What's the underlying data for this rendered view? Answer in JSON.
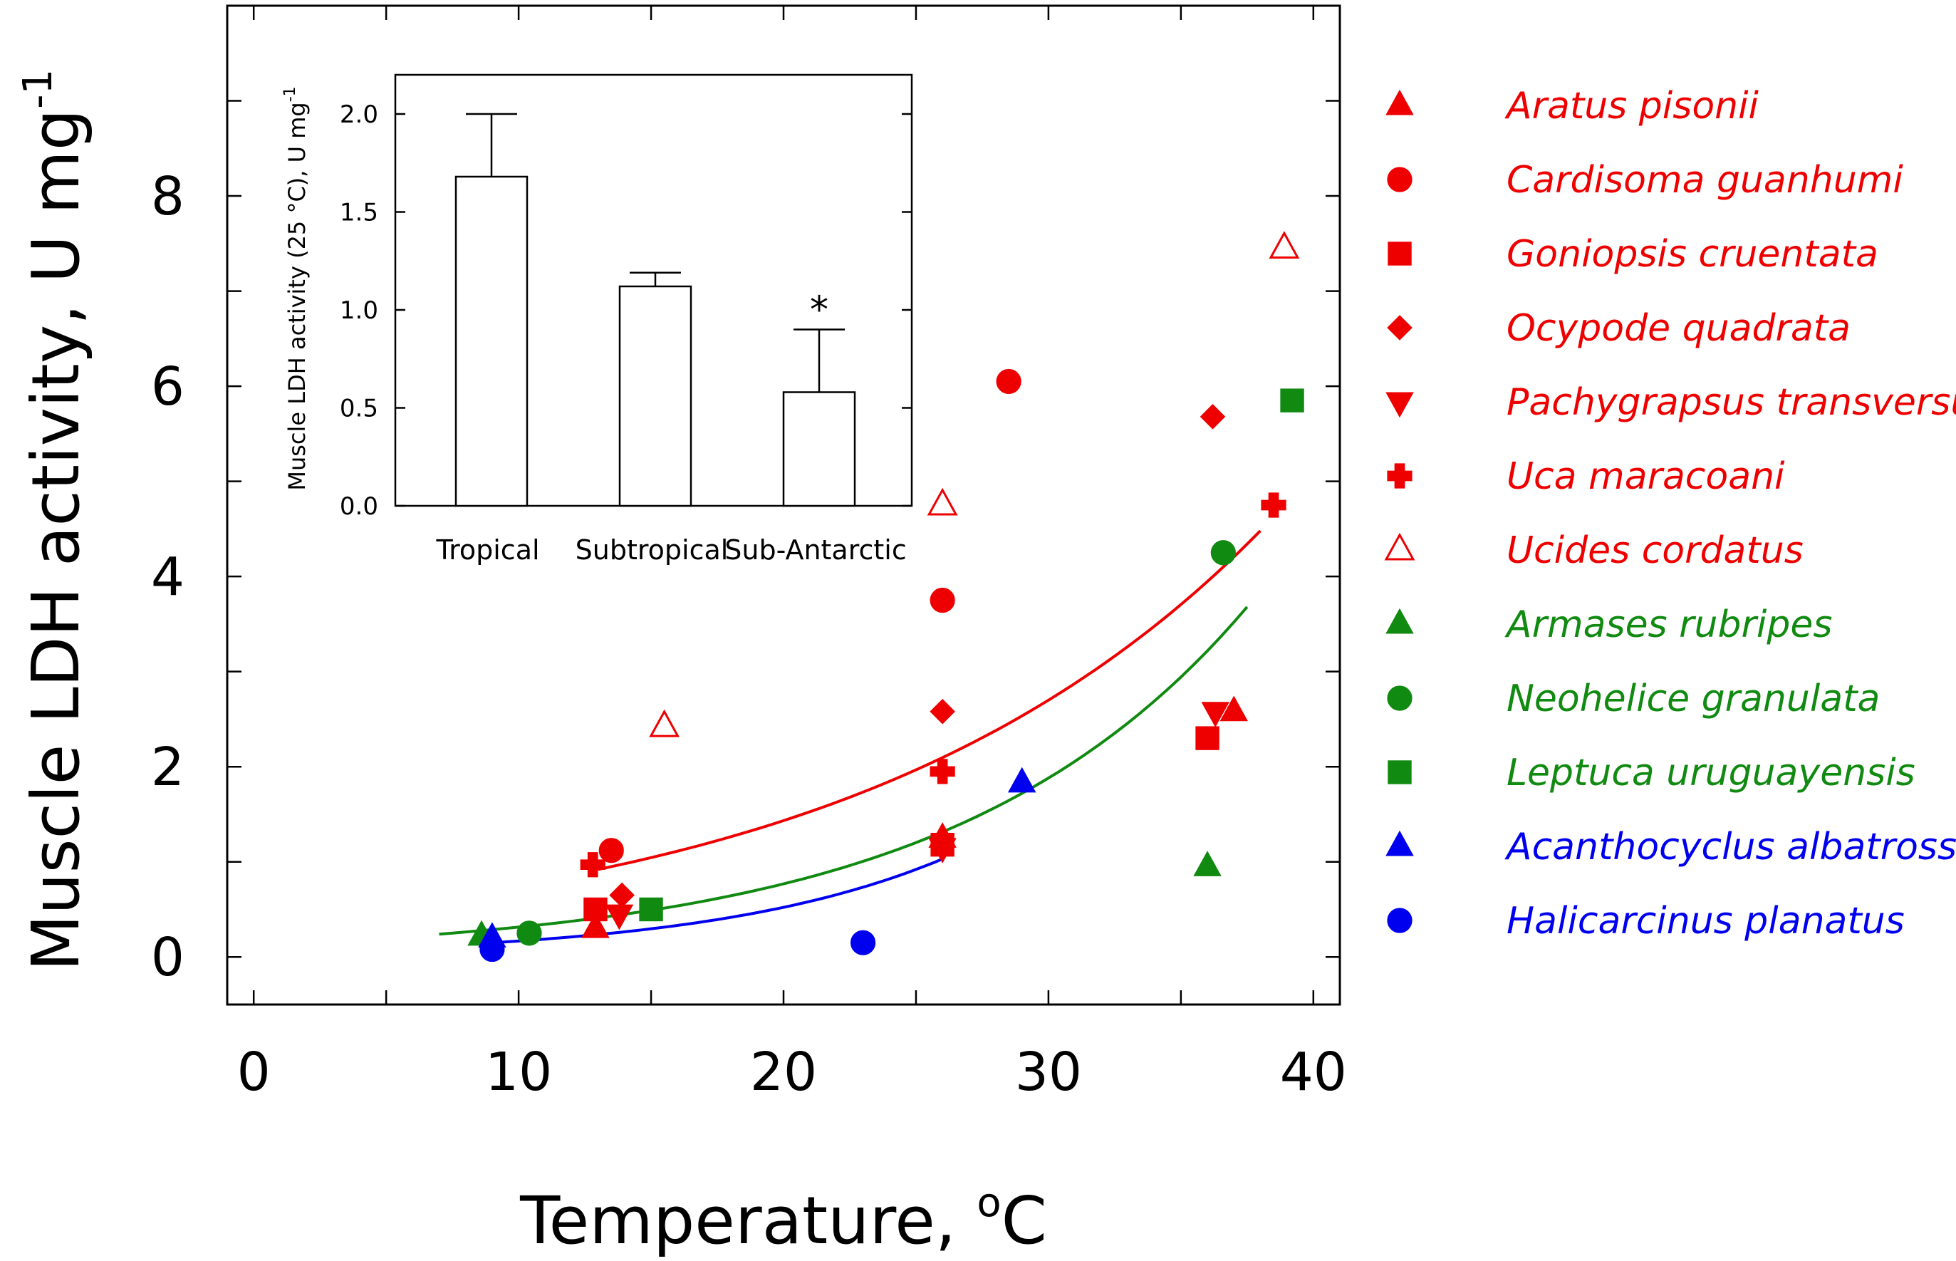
{
  "chart_data": [
    {
      "type": "scatter",
      "xlabel": "Temperature, °C",
      "xlabel_main": "Temperature, ",
      "xlabel_unit_sup": "o",
      "xlabel_unit": "C",
      "ylabel": "Muscle LDH activity, U mg-1",
      "ylabel_main": "Muscle LDH activity, U mg",
      "ylabel_sup": "-1",
      "xlim": [
        -1,
        41
      ],
      "ylim": [
        -0.5,
        10
      ],
      "xticks": [
        0,
        10,
        20,
        30,
        40
      ],
      "xtick_labels": [
        "0",
        "10",
        "20",
        "30",
        "40"
      ],
      "yticks": [
        0,
        2,
        4,
        6,
        8
      ],
      "ytick_labels": [
        "0",
        "2",
        "4",
        "6",
        "8"
      ],
      "minor_xticks": [
        5,
        15,
        25,
        35
      ],
      "minor_yticks": [
        1,
        3,
        5,
        7,
        9
      ],
      "colors": {
        "tropical": "#ee0000",
        "subtropical": "#108a10",
        "subantarctic": "#0000ee"
      },
      "series": [
        {
          "name": "Aratus pisonii",
          "marker": "triangle",
          "color": "#ee0000",
          "filled": true,
          "x": [
            12.9,
            26.0,
            37.0
          ],
          "y": [
            0.3,
            1.25,
            2.58
          ]
        },
        {
          "name": "Cardisoma guanhumi",
          "marker": "circle",
          "color": "#ee0000",
          "filled": true,
          "x": [
            13.5,
            26.0,
            28.5
          ],
          "y": [
            1.12,
            3.75,
            6.05
          ]
        },
        {
          "name": "Goniopsis cruentata",
          "marker": "square",
          "color": "#ee0000",
          "filled": true,
          "x": [
            12.9,
            26.0,
            36.0
          ],
          "y": [
            0.5,
            1.18,
            2.3
          ]
        },
        {
          "name": "Ocypode quadrata",
          "marker": "diamond",
          "color": "#ee0000",
          "filled": true,
          "x": [
            13.9,
            26.0,
            36.2
          ],
          "y": [
            0.65,
            2.58,
            5.68
          ]
        },
        {
          "name": "Pachygrapsus transversus",
          "marker": "triangle-down",
          "color": "#ee0000",
          "filled": true,
          "x": [
            13.8,
            26.0,
            36.3
          ],
          "y": [
            0.45,
            1.15,
            2.58
          ]
        },
        {
          "name": "Uca maracoani",
          "marker": "plus",
          "color": "#ee0000",
          "filled": true,
          "x": [
            12.8,
            26.0,
            38.5
          ],
          "y": [
            0.97,
            1.95,
            4.75
          ]
        },
        {
          "name": "Ucides cordatus",
          "marker": "triangle",
          "color": "#ee0000",
          "filled": false,
          "x": [
            15.5,
            26.0,
            38.9
          ],
          "y": [
            2.42,
            4.75,
            7.45
          ]
        },
        {
          "name": "Armases rubripes",
          "marker": "triangle",
          "color": "#108a10",
          "filled": true,
          "x": [
            8.6,
            36.0
          ],
          "y": [
            0.22,
            0.95
          ]
        },
        {
          "name": "Neohelice granulata",
          "marker": "circle",
          "color": "#108a10",
          "filled": true,
          "x": [
            10.4,
            36.6
          ],
          "y": [
            0.25,
            4.25
          ]
        },
        {
          "name": "Leptuca uruguayensis",
          "marker": "square",
          "color": "#108a10",
          "filled": true,
          "x": [
            15.0,
            39.2
          ],
          "y": [
            0.5,
            5.85
          ]
        },
        {
          "name": "Acanthocyclus albatrossis",
          "marker": "triangle",
          "color": "#0000ee",
          "filled": true,
          "x": [
            9.0,
            29.0
          ],
          "y": [
            0.2,
            1.83
          ]
        },
        {
          "name": "Halicarcinus planatus",
          "marker": "circle",
          "color": "#0000ee",
          "filled": true,
          "x": [
            9.0,
            23.0
          ],
          "y": [
            0.08,
            0.15
          ]
        }
      ],
      "fit_lines": [
        {
          "name": "Tropical fit",
          "color": "#ee0000",
          "x_range": [
            13,
            38
          ],
          "exponent": "exponential",
          "x": [
            13,
            38
          ],
          "y": [
            0.92,
            4.48
          ]
        },
        {
          "name": "Subtropical fit",
          "color": "#108a10",
          "x_range": [
            7,
            37.5
          ],
          "exponent": "exponential",
          "x": [
            7,
            37.5
          ],
          "y": [
            0.24,
            3.68
          ]
        },
        {
          "name": "Sub-Antarctic fit",
          "color": "#0000ee",
          "x_range": [
            9,
            26
          ],
          "exponent": "exponential",
          "x": [
            9,
            26
          ],
          "y": [
            0.15,
            1.03
          ]
        }
      ],
      "legend_position": "right"
    },
    {
      "type": "bar",
      "title": "",
      "categories": [
        "Tropical",
        "Subtropical",
        "Sub-Antarctic"
      ],
      "values": [
        1.68,
        1.12,
        0.58
      ],
      "errors": [
        0.32,
        0.07,
        0.32
      ],
      "significance": [
        "",
        "",
        "*"
      ],
      "ylabel": "Muscle LDH activity (25 °C), U mg-1",
      "ylabel_main": "Muscle LDH activity (25 °C), U mg",
      "ylabel_sup": "-1",
      "ylim": [
        0,
        2.2
      ],
      "yticks": [
        0.0,
        0.5,
        1.0,
        1.5,
        2.0
      ],
      "ytick_labels": [
        "0.0",
        "0.5",
        "1.0",
        "1.5",
        "2.0"
      ],
      "legend_position": "inset top-left"
    }
  ]
}
